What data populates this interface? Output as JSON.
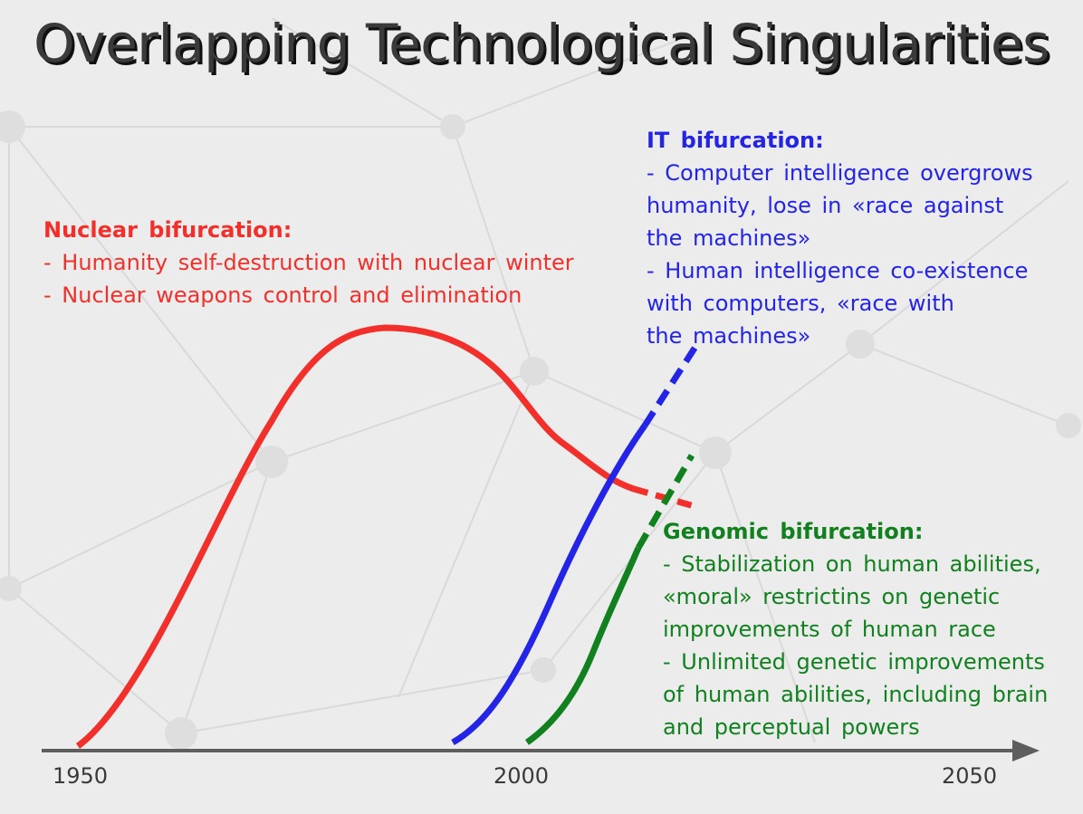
{
  "title": "Overlapping Technological Singularities",
  "colors": {
    "background": "#ececec",
    "nuclear": "#f2302b",
    "it": "#2424e6",
    "genomic": "#11801e",
    "axis": "#5e5e5e",
    "title": "#3a3a3a"
  },
  "nuclear": {
    "heading": "Nuclear bifurcation:",
    "lines": [
      "- Humanity self-destruction with nuclear winter",
      "- Nuclear weapons control and elimination"
    ]
  },
  "it": {
    "heading": "IT bifurcation:",
    "lines": [
      "- Computer intelligence overgrows",
      "humanity, lose in «race against",
      "the machines»",
      "- Human intelligence co-existence",
      "with computers, «race with",
      "the machines»"
    ]
  },
  "genomic": {
    "heading": "Genomic bifurcation:",
    "lines": [
      "- Stabilization on human abilities,",
      "«moral» restrictins on genetic",
      "improvements of human race",
      "- Unlimited genetic improvements",
      "of human abilities, including brain",
      "and perceptual powers"
    ]
  },
  "axis": {
    "ticks": [
      "1950",
      "2000",
      "2050"
    ]
  }
}
